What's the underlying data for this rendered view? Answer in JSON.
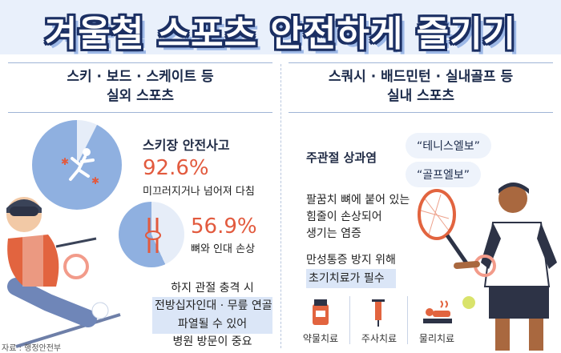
{
  "title": "겨울철 스포츠 안전하게 즐기기",
  "left": {
    "heading_line1": "스키 · 보드 · 스케이트 등",
    "heading_line2": "실외 스포츠",
    "accident_label": "스키장 안전사고",
    "stat1": {
      "pct": "92.6%",
      "desc": "미끄러지거나 넘어져 다침",
      "value": 92.6
    },
    "stat2": {
      "pct": "56.9%",
      "desc": "뼈와 인대 손상",
      "value": 56.9
    },
    "note_line1": "하지 관절 충격 시",
    "note_line2": "전방십자인대 · 무릎 연골",
    "note_line3": "파열될 수 있어",
    "note_line4": "병원 방문이 중요",
    "source": "자료 : 행정안전부"
  },
  "right": {
    "heading_line1": "스쿼시 · 배드민턴 · 실내골프 등",
    "heading_line2": "실내 스포츠",
    "condition": "주관절 상과염",
    "bubble1": "“테니스엘보”",
    "bubble2": "“골프엘보”",
    "explain_line1": "팔꿈치 뼈에 붙어 있는",
    "explain_line2": "힘줄이 손상되어",
    "explain_line3": "생기는 염증",
    "advice_line1": "만성통증 방지 위해",
    "advice_line2": "초기치료가 필수",
    "treatments": [
      {
        "label": "약물치료",
        "icon": "medicine-bottle-icon"
      },
      {
        "label": "주사치료",
        "icon": "syringe-icon"
      },
      {
        "label": "물리치료",
        "icon": "physical-therapy-icon"
      }
    ]
  },
  "colors": {
    "navy": "#1b2f63",
    "accent": "#e25a3e",
    "light_blue": "#dbe6f7",
    "pie_blue": "#8fb0e0"
  }
}
